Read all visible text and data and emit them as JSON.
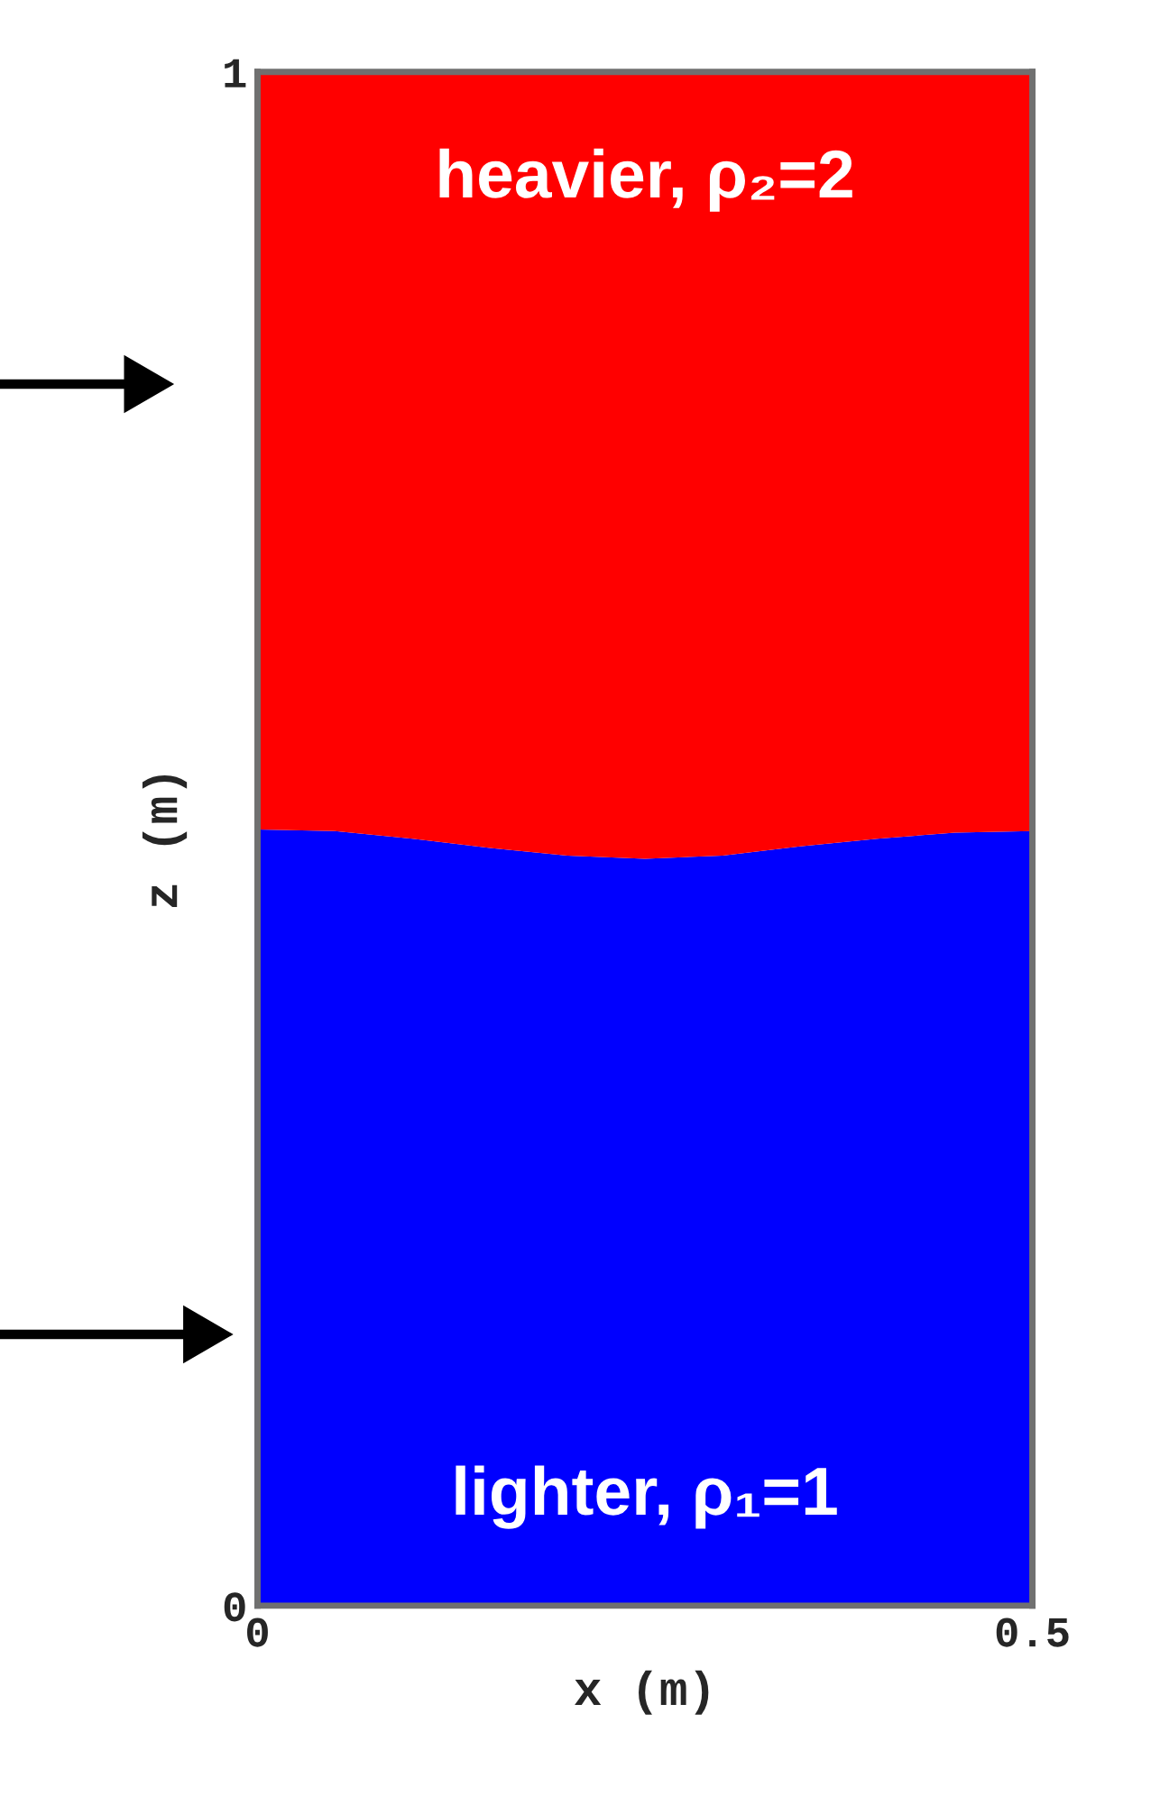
{
  "chart_data": {
    "type": "area",
    "stacked": true,
    "xlabel": "x (m)",
    "ylabel": "z (m)",
    "x": [
      0,
      0.05,
      0.1,
      0.15,
      0.2,
      0.25,
      0.3,
      0.35,
      0.4,
      0.45,
      0.5
    ],
    "series": [
      {
        "name": "lighter, ρ₁=1",
        "color": "#0000ff",
        "values": [
          0.506,
          0.505,
          0.5,
          0.494,
          0.489,
          0.487,
          0.489,
          0.495,
          0.5,
          0.504,
          0.505
        ]
      },
      {
        "name": "heavier, ρ₂=2",
        "color": "#ff0000",
        "values": [
          0.494,
          0.495,
          0.5,
          0.506,
          0.511,
          0.513,
          0.511,
          0.505,
          0.5,
          0.496,
          0.495
        ]
      }
    ],
    "xlim": [
      0,
      0.5
    ],
    "ylim": [
      0,
      1
    ],
    "xticks": [
      0,
      0.5
    ],
    "yticks": [
      0,
      1
    ],
    "legend": false
  }
}
